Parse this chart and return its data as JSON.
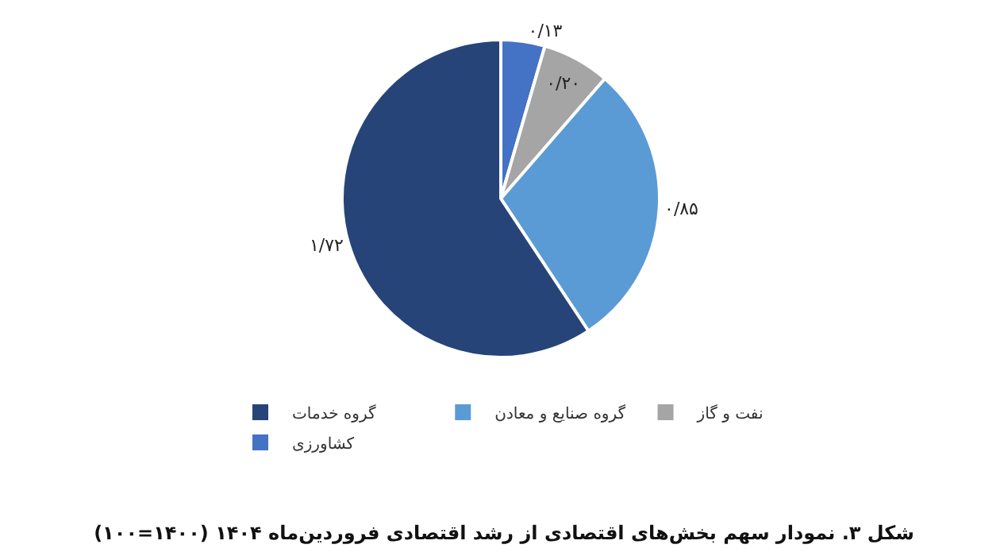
{
  "chart_data": {
    "type": "pie",
    "title": "شکل ۳. نمودار سهم بخش‌های اقتصادی از رشد اقتصادی فروردین‌ماه ۱۴۰۴ (۱۴۰۰=۱۰۰)",
    "categories": [
      "کشاورزی",
      "نفت و گاز",
      "گروه صنایع و معادن",
      "گروه خدمات"
    ],
    "values": [
      0.13,
      0.2,
      0.85,
      1.72
    ],
    "value_labels": [
      "۰/۱۳",
      "۰/۲۰",
      "۰/۸۵",
      "۱/۷۲"
    ],
    "colors": [
      "#4472c4",
      "#a5a5a5",
      "#5b9bd5",
      "#264478"
    ],
    "legend": "bottom"
  }
}
